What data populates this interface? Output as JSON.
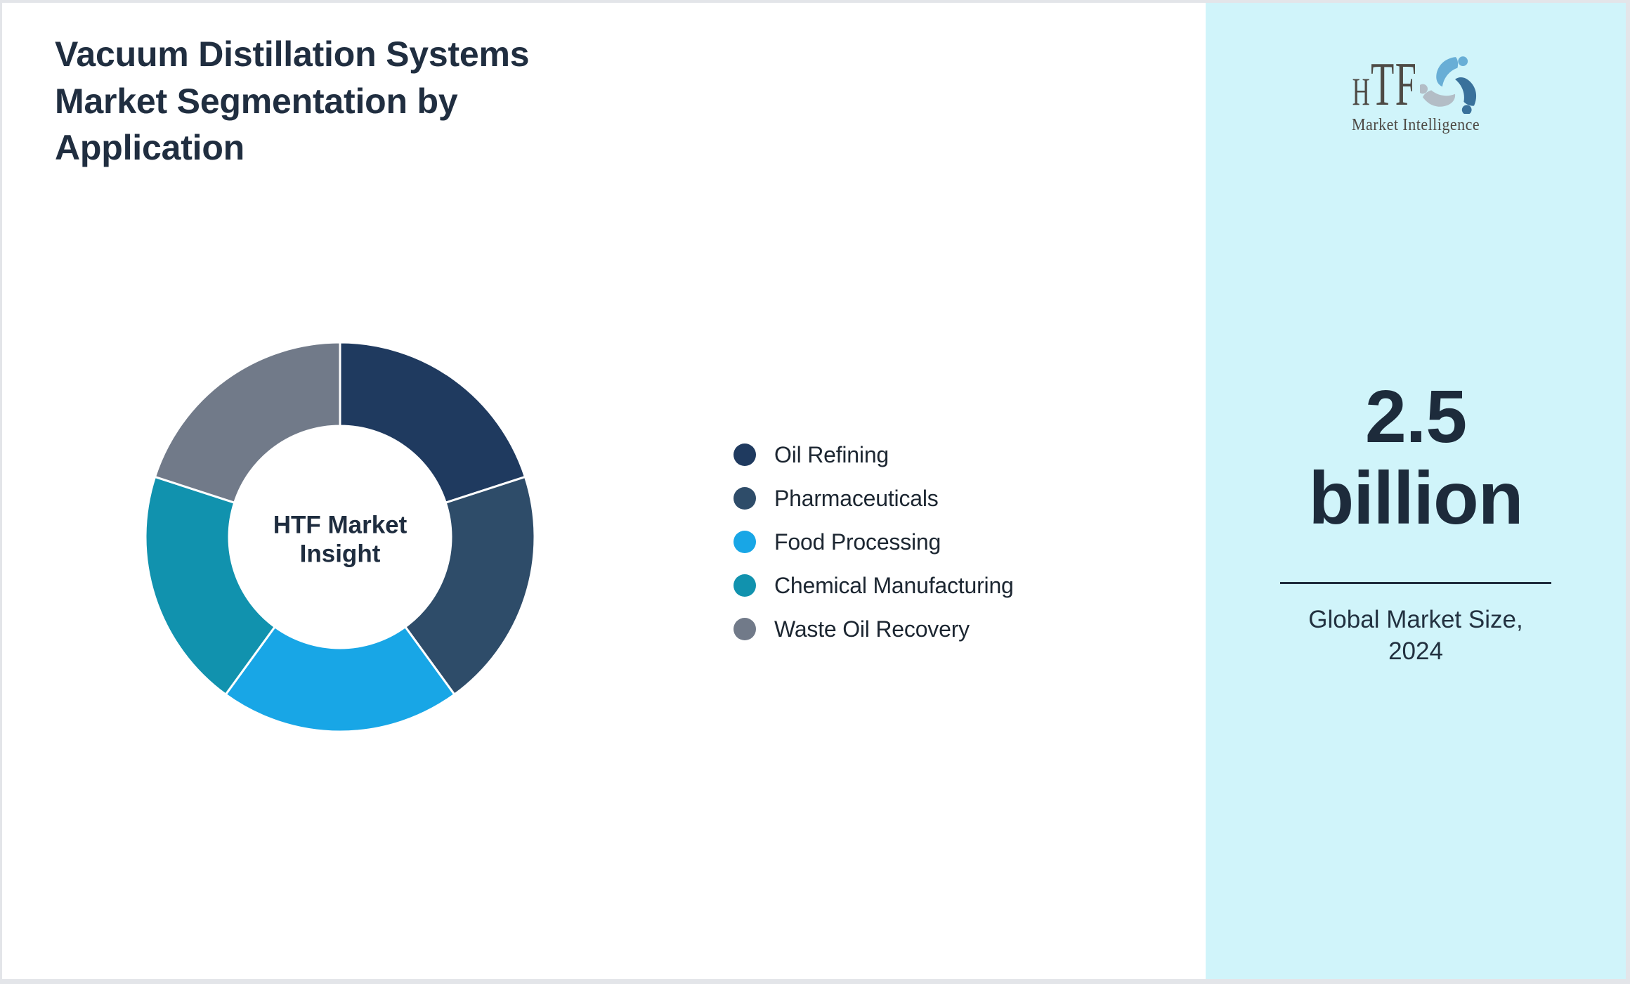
{
  "page": {
    "title": "Vacuum Distillation Systems\nMarket Segmentation by\nApplication",
    "background": "#ffffff",
    "border_color": "#e3e5e9",
    "text_color": "#202e40"
  },
  "chart_data": {
    "type": "pie",
    "subtype": "donut",
    "title": "Vacuum Distillation Systems Market Segmentation by Application",
    "center_label": "HTF Market\nInsight",
    "categories": [
      "Oil Refining",
      "Pharmaceuticals",
      "Food Processing",
      "Chemical Manufacturing",
      "Waste Oil Recovery"
    ],
    "values": [
      20,
      20,
      20,
      20,
      20
    ],
    "value_unit": "percent-estimated-equal-slices",
    "colors": [
      "#1f3a5f",
      "#2e4c69",
      "#18a6e6",
      "#1192ae",
      "#717a89"
    ],
    "start_angle_deg": 0,
    "direction": "clockwise",
    "inner_radius_ratio": 0.57,
    "slice_gap_color": "#ffffff",
    "legend_position": "right-middle",
    "center_label_color": "#1f2d3f"
  },
  "sidebar": {
    "background": "#d0f4fa",
    "logo": {
      "text_h": "H",
      "text_tf": "TF",
      "subtext": "Market Intelligence",
      "color": "#4e4a45",
      "swirl_colors": [
        "#68aed6",
        "#39719b",
        "#b3bdc6"
      ]
    },
    "market_value": "2.5\nbillion",
    "value_color": "#1d2b3b",
    "divider_color": "#1f2c3d",
    "caption": "Global Market Size,\n2024"
  }
}
